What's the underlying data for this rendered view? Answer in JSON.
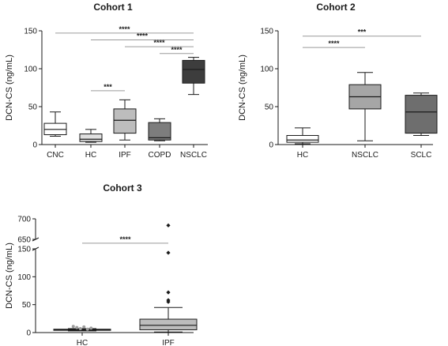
{
  "chart_data": [
    {
      "type": "box",
      "title": "Cohort 1",
      "ylabel": "DCN-CS (ng/mL)",
      "ylim": [
        0,
        150
      ],
      "yticks": [
        0,
        50,
        100,
        150
      ],
      "categories": [
        "CNC",
        "HC",
        "IPF",
        "COPD",
        "NSCLC"
      ],
      "boxes": [
        {
          "min": 11,
          "q1": 13,
          "median": 20,
          "q3": 28,
          "max": 43,
          "fill": "#ffffff"
        },
        {
          "min": 3,
          "q1": 4,
          "median": 7,
          "q3": 14,
          "max": 20,
          "fill": "#e0e0e0"
        },
        {
          "min": 6,
          "q1": 15,
          "median": 32,
          "q3": 47,
          "max": 59,
          "fill": "#bdbdbd"
        },
        {
          "min": 5,
          "q1": 6,
          "median": 9,
          "q3": 29,
          "max": 34,
          "fill": "#7d7d7d"
        },
        {
          "min": 66,
          "q1": 81,
          "median": 99,
          "q3": 111,
          "max": 115,
          "fill": "#3d3d3d"
        }
      ],
      "significance": [
        {
          "from": 0,
          "to": 4,
          "y": 147,
          "label": "****"
        },
        {
          "from": 1,
          "to": 4,
          "y": 138,
          "label": "****"
        },
        {
          "from": 2,
          "to": 4,
          "y": 129,
          "label": "****"
        },
        {
          "from": 3,
          "to": 4,
          "y": 120,
          "label": "****"
        },
        {
          "from": 1,
          "to": 2,
          "y": 71,
          "label": "***"
        }
      ]
    },
    {
      "type": "box",
      "title": "Cohort 2",
      "ylabel": "DCN-CS (ng/mL)",
      "ylim": [
        0,
        150
      ],
      "yticks": [
        0,
        50,
        100,
        150
      ],
      "categories": [
        "HC",
        "NSCLC",
        "SCLC"
      ],
      "boxes": [
        {
          "min": 1,
          "q1": 3,
          "median": 6,
          "q3": 12,
          "max": 22,
          "fill": "#ffffff"
        },
        {
          "min": 5,
          "q1": 47,
          "median": 63,
          "q3": 79,
          "max": 95,
          "fill": "#a6a6a6"
        },
        {
          "min": 12,
          "q1": 15,
          "median": 43,
          "q3": 65,
          "max": 68,
          "fill": "#6e6e6e"
        }
      ],
      "significance": [
        {
          "from": 0,
          "to": 2,
          "y": 143,
          "label": "***"
        },
        {
          "from": 0,
          "to": 1,
          "y": 128,
          "label": "****"
        }
      ]
    },
    {
      "type": "box",
      "title": "Cohort 3",
      "ylabel": "DCN-CS (ng/mL)",
      "ylim_lower": [
        0,
        150
      ],
      "yticks_lower": [
        0,
        50,
        100,
        150
      ],
      "ylim_upper": [
        650,
        700
      ],
      "yticks_upper": [
        650,
        700
      ],
      "categories": [
        "HC",
        "IPF"
      ],
      "boxes": [
        {
          "min": 3,
          "q1": 4,
          "median": 5,
          "q3": 6,
          "max": 7,
          "fill": "#ffffff"
        },
        {
          "min": 1,
          "q1": 5,
          "median": 13,
          "q3": 24,
          "max": 45,
          "fill": "#bdbdbd"
        }
      ],
      "outliers": [
        {
          "category": 0,
          "values": [
            11,
            9,
            7,
            10,
            6,
            8
          ],
          "color": "#9e9e9e"
        },
        {
          "category": 1,
          "values": [
            55,
            58,
            72,
            143,
            684
          ],
          "color": "#1a1a1a"
        }
      ],
      "significance": [
        {
          "from": 0,
          "to": 1,
          "y": 160,
          "label": "****"
        }
      ]
    }
  ]
}
